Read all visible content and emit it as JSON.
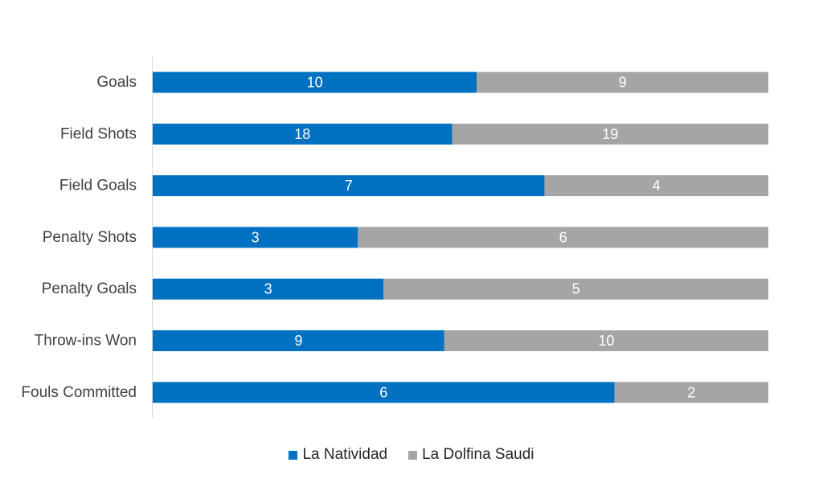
{
  "chart_data": {
    "type": "bar",
    "orientation": "horizontal",
    "stacked": "percent",
    "title": "",
    "xlabel": "",
    "ylabel": "",
    "categories": [
      "Goals",
      "Field Shots",
      "Field Goals",
      "Penalty Shots",
      "Penalty Goals",
      "Throw-ins Won",
      "Fouls Committed"
    ],
    "series": [
      {
        "name": "La Natividad",
        "color": "#0070C0",
        "values": [
          10,
          18,
          7,
          3,
          3,
          9,
          6
        ]
      },
      {
        "name": "La Dolfina Saudi",
        "color": "#A5A5A5",
        "values": [
          9,
          19,
          4,
          6,
          5,
          10,
          2
        ]
      }
    ],
    "grid": false,
    "legend_position": "bottom"
  }
}
